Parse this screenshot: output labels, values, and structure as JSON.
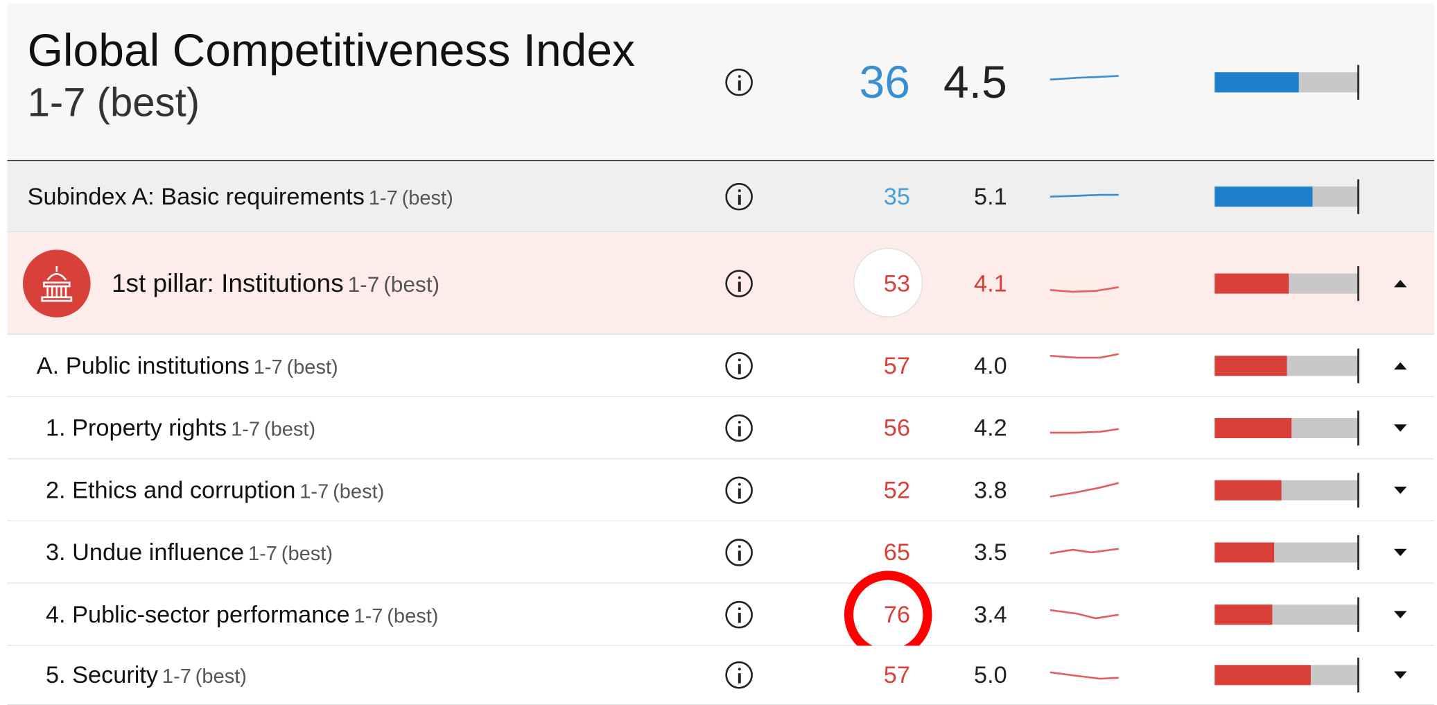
{
  "rows": [
    {
      "label": "Global Competitiveness Index",
      "unit": "1-7",
      "best": "(best)",
      "rank": 36,
      "score": {
        "value": 4.5,
        "label": "4.5"
      }
    },
    {
      "label": "Subindex A: Basic requirements",
      "unit": "1-7",
      "best": "(best)",
      "rank": 35,
      "score": {
        "value": 5.1,
        "label": "5.1"
      }
    },
    {
      "label": "1st pillar: Institutions",
      "unit": "1-7",
      "best": "(best)",
      "rank": 53,
      "score": {
        "value": 4.1,
        "label": "4.1"
      }
    },
    {
      "label": "A. Public institutions",
      "unit": "1-7",
      "best": "(best)",
      "rank": 57,
      "score": {
        "value": 4,
        "label": "4.0"
      }
    },
    {
      "label": "1. Property rights",
      "unit": "1-7",
      "best": "(best)",
      "rank": 56,
      "score": {
        "value": 4.2,
        "label": "4.2"
      }
    },
    {
      "label": "2. Ethics and corruption",
      "unit": "1-7",
      "best": "(best)",
      "rank": 52,
      "score": {
        "value": 3.8,
        "label": "3.8"
      }
    },
    {
      "label": "3. Undue influence",
      "unit": "1-7",
      "best": "(best)",
      "rank": 65,
      "score": {
        "value": 3.5,
        "label": "3.5"
      }
    },
    {
      "label": "4. Public-sector performance",
      "unit": "1-7",
      "best": "(best)",
      "rank": 76,
      "score": {
        "value": 3.4,
        "label": "3.4"
      }
    },
    {
      "label": "5. Security",
      "unit": "1-7",
      "best": "(best)",
      "rank": 57,
      "score": {
        "value": 5,
        "label": "5.0"
      }
    }
  ]
}
